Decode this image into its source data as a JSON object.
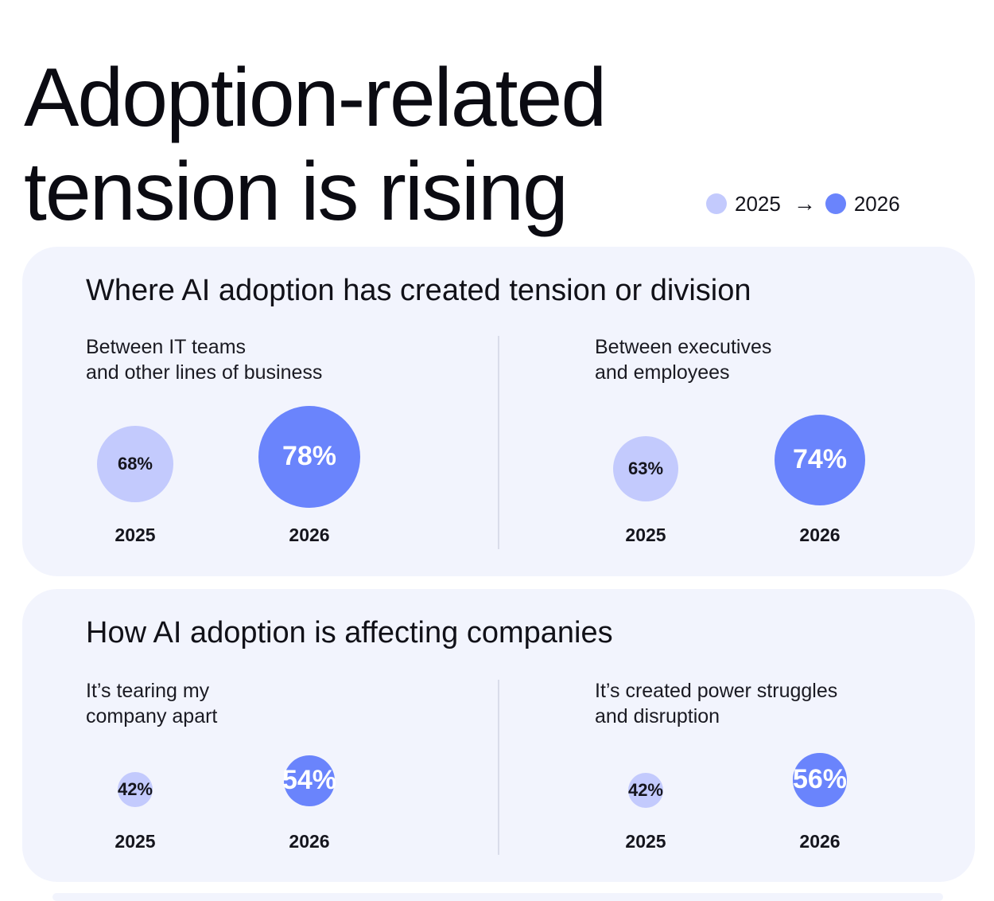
{
  "title": {
    "line1": "Adoption-related",
    "line2": "tension is rising"
  },
  "legend": {
    "from": "2025",
    "to": "2026",
    "from_color": "#c3cafd",
    "to_color": "#6a84fc",
    "arrow_icon": "arrow-right-icon"
  },
  "chart_data": [
    {
      "type": "bubble",
      "title": "Where AI adoption has created tension or division",
      "series_names": [
        "2025",
        "2026"
      ],
      "categories": [
        "Between IT teams\nand other lines of business",
        "Between executives\nand employees"
      ],
      "panels": [
        {
          "category": "Between IT teams\nand other lines of business",
          "values": [
            68,
            78
          ],
          "labels": [
            "68%",
            "78%"
          ],
          "years": [
            "2025",
            "2026"
          ]
        },
        {
          "category": "Between executives\nand employees",
          "values": [
            63,
            74
          ],
          "labels": [
            "63%",
            "74%"
          ],
          "years": [
            "2025",
            "2026"
          ]
        }
      ],
      "unit": "%"
    },
    {
      "type": "bubble",
      "title": "How AI adoption is affecting companies",
      "series_names": [
        "2025",
        "2026"
      ],
      "categories": [
        "It’s tearing my\ncompany apart",
        "It’s created power struggles\nand disruption"
      ],
      "panels": [
        {
          "category": "It’s tearing my\ncompany apart",
          "values": [
            42,
            54
          ],
          "labels": [
            "42%",
            "54%"
          ],
          "years": [
            "2025",
            "2026"
          ]
        },
        {
          "category": "It’s created power struggles\nand disruption",
          "values": [
            42,
            56
          ],
          "labels": [
            "42%",
            "56%"
          ],
          "years": [
            "2025",
            "2026"
          ]
        }
      ],
      "unit": "%"
    }
  ]
}
